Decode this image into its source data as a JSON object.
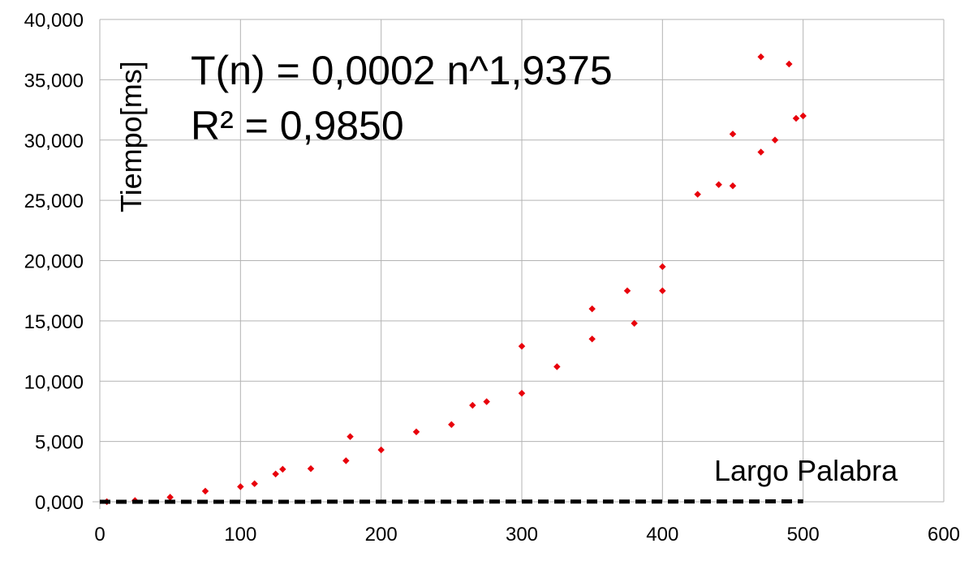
{
  "chart_data": {
    "type": "scatter",
    "xlabel": "Largo Palabra",
    "ylabel": "Tiempo[ms]",
    "equation": "T(n) = 0,0002 n^1,9375",
    "r_squared": "R² = 0,9850",
    "xlim": [
      0,
      600
    ],
    "ylim": [
      0,
      40000
    ],
    "x_ticks": [
      0,
      100,
      200,
      300,
      400,
      500,
      600
    ],
    "x_tick_labels": [
      "0",
      "100",
      "200",
      "300",
      "400",
      "500",
      "600"
    ],
    "y_ticks": [
      0,
      5000,
      10000,
      15000,
      20000,
      25000,
      30000,
      35000,
      40000
    ],
    "y_tick_labels": [
      "0,000",
      "5,000",
      "10,000",
      "15,000",
      "20,000",
      "25,000",
      "30,000",
      "35,000",
      "40,000"
    ],
    "grid": true,
    "marker_color": "#e8000b",
    "trendline_color": "#000000",
    "trendline": {
      "type": "power",
      "coefficient": 0.0002,
      "exponent": 1.9375,
      "x_range": [
        0,
        500
      ],
      "style": "dashed"
    },
    "series": [
      {
        "values": [
          [
            5,
            6
          ],
          [
            25,
            100
          ],
          [
            50,
            380
          ],
          [
            75,
            880
          ],
          [
            100,
            1250
          ],
          [
            110,
            1500
          ],
          [
            125,
            2300
          ],
          [
            130,
            2700
          ],
          [
            150,
            2750
          ],
          [
            175,
            3400
          ],
          [
            178,
            5400
          ],
          [
            200,
            4300
          ],
          [
            225,
            5800
          ],
          [
            250,
            6400
          ],
          [
            265,
            8000
          ],
          [
            275,
            8300
          ],
          [
            300,
            9000
          ],
          [
            300,
            12900
          ],
          [
            325,
            11200
          ],
          [
            350,
            13500
          ],
          [
            350,
            16000
          ],
          [
            375,
            17500
          ],
          [
            380,
            14800
          ],
          [
            400,
            19500
          ],
          [
            400,
            17500
          ],
          [
            425,
            25500
          ],
          [
            440,
            26300
          ],
          [
            450,
            26200
          ],
          [
            450,
            30500
          ],
          [
            470,
            29000
          ],
          [
            470,
            36900
          ],
          [
            480,
            30000
          ],
          [
            490,
            36300
          ],
          [
            495,
            31800
          ],
          [
            500,
            32000
          ]
        ]
      }
    ]
  }
}
